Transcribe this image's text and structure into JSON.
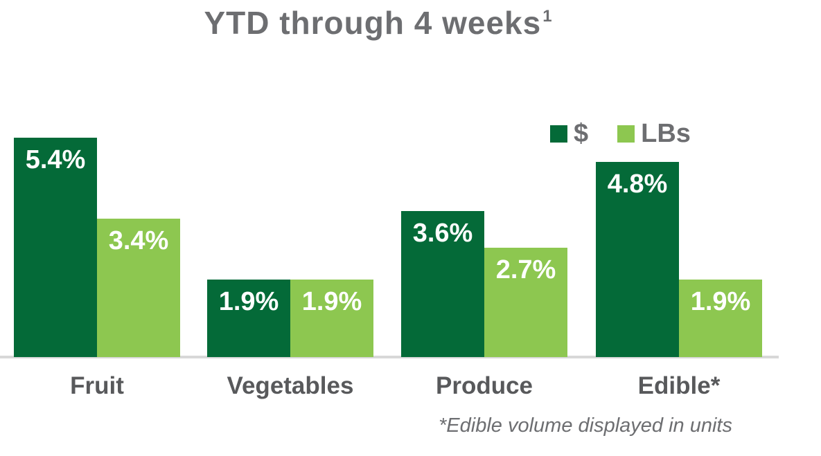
{
  "title": {
    "text": "YTD through 4 weeks",
    "sup": "1"
  },
  "footnote": "*Edible volume displayed in units",
  "colors": {
    "dollars_green": "#046a38",
    "lbs_green": "#8dc750",
    "title_gray": "#6d6e71",
    "category_label_gray": "#58595b",
    "value_label_white": "#ffffff",
    "axis_line_gray": "#d8d8d8"
  },
  "chart_data": {
    "type": "bar",
    "title": "YTD through 4 weeks¹",
    "categories": [
      "Fruit",
      "Vegetables",
      "Produce",
      "Edible*"
    ],
    "series": [
      {
        "name": "$",
        "key": "dollars",
        "color": "#046a38",
        "values": [
          5.4,
          1.9,
          3.6,
          4.8
        ],
        "labels": [
          "5.4%",
          "1.9%",
          "3.6%",
          "4.8%"
        ]
      },
      {
        "name": "LBs",
        "key": "lbs",
        "color": "#8dc750",
        "values": [
          3.4,
          1.9,
          2.7,
          1.9
        ],
        "labels": [
          "3.4%",
          "1.9%",
          "2.7%",
          "1.9%"
        ]
      }
    ],
    "xlabel": "",
    "ylabel": "",
    "unit": "%",
    "ylim": [
      0,
      5.5
    ],
    "grid": false,
    "legend_position": "top-right",
    "footnote": "*Edible volume displayed in units"
  }
}
